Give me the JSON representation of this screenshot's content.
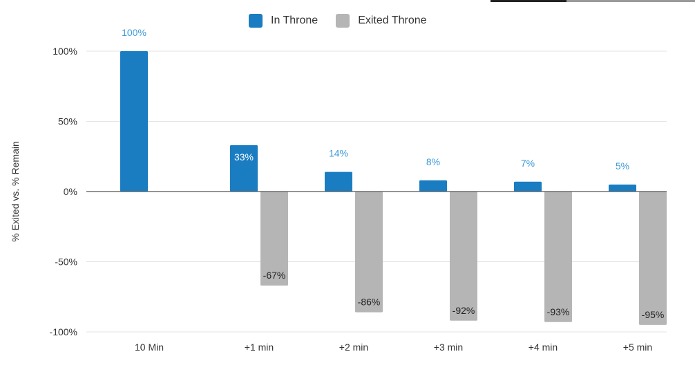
{
  "chart_data": {
    "type": "bar",
    "title": "",
    "xlabel": "",
    "ylabel": "% Exited vs. % Remain",
    "categories": [
      "10 Min",
      "+1 min",
      "+2 min",
      "+3 min",
      "+4 min",
      "+5 min"
    ],
    "series": [
      {
        "name": "In Throne",
        "color": "#1a7dc2",
        "values": [
          100,
          33,
          14,
          8,
          7,
          5
        ],
        "labels": [
          "100%",
          "33%",
          "14%",
          "8%",
          "7%",
          "5%"
        ]
      },
      {
        "name": "Exited Throne",
        "color": "#b5b5b5",
        "values": [
          null,
          -67,
          -86,
          -92,
          -93,
          -95
        ],
        "labels": [
          "",
          "-67%",
          "-86%",
          "-92%",
          "-93%",
          "-95%"
        ]
      }
    ],
    "ylim": [
      -100,
      100
    ],
    "yticks": [
      100,
      50,
      0,
      -50,
      -100
    ],
    "ytick_labels": [
      "100%",
      "50%",
      "0%",
      "-50%",
      "-100%"
    ],
    "grid": true,
    "legend_position": "top"
  }
}
